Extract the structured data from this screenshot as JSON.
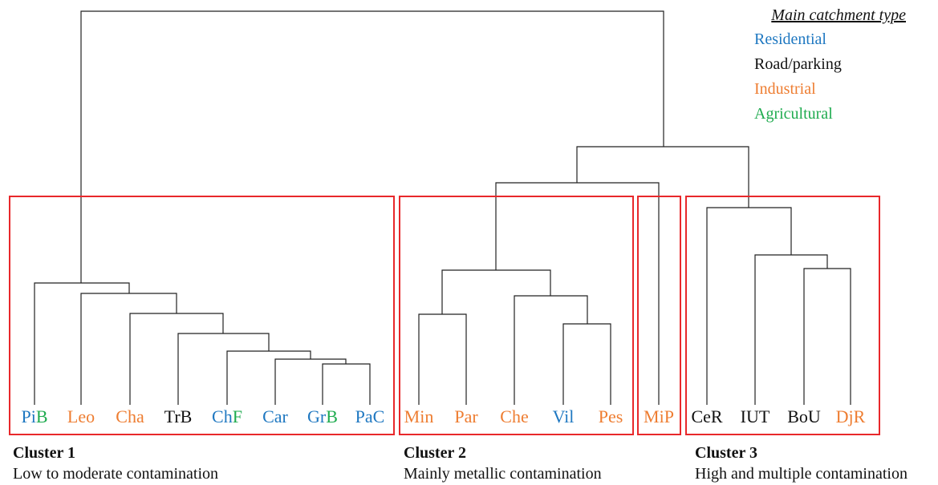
{
  "legend": {
    "title": "Main catchment type",
    "items": [
      {
        "label": "Residential",
        "color": "#1f78c1"
      },
      {
        "label": "Road/parking",
        "color": "#111111"
      },
      {
        "label": "Industrial",
        "color": "#ee7d31"
      },
      {
        "label": "Agricultural",
        "color": "#1fab4f"
      }
    ]
  },
  "leaves": [
    {
      "label": "PiB",
      "parts": [
        {
          "t": "Pi",
          "color": "#1f78c1"
        },
        {
          "t": "B",
          "color": "#1fab4f"
        }
      ]
    },
    {
      "label": "Leo",
      "parts": [
        {
          "t": "Leo",
          "color": "#ee7d31"
        }
      ]
    },
    {
      "label": "Cha",
      "parts": [
        {
          "t": "Cha",
          "color": "#ee7d31"
        }
      ]
    },
    {
      "label": "TrB",
      "parts": [
        {
          "t": "TrB",
          "color": "#111111"
        }
      ]
    },
    {
      "label": "ChF",
      "parts": [
        {
          "t": "Ch",
          "color": "#1f78c1"
        },
        {
          "t": "F",
          "color": "#1fab4f"
        }
      ]
    },
    {
      "label": "Car",
      "parts": [
        {
          "t": "Car",
          "color": "#1f78c1"
        }
      ]
    },
    {
      "label": "GrB",
      "parts": [
        {
          "t": "Gr",
          "color": "#1f78c1"
        },
        {
          "t": "B",
          "color": "#1fab4f"
        }
      ]
    },
    {
      "label": "PaC",
      "parts": [
        {
          "t": "PaC",
          "color": "#1f78c1"
        }
      ]
    },
    {
      "label": "Min",
      "parts": [
        {
          "t": "Min",
          "color": "#ee7d31"
        }
      ]
    },
    {
      "label": "Par",
      "parts": [
        {
          "t": "Par",
          "color": "#ee7d31"
        }
      ]
    },
    {
      "label": "Che",
      "parts": [
        {
          "t": "Che",
          "color": "#ee7d31"
        }
      ]
    },
    {
      "label": "Vil",
      "parts": [
        {
          "t": "Vil",
          "color": "#1f78c1"
        }
      ]
    },
    {
      "label": "Pes",
      "parts": [
        {
          "t": "Pes",
          "color": "#ee7d31"
        }
      ]
    },
    {
      "label": "MiP",
      "parts": [
        {
          "t": "MiP",
          "color": "#ee7d31"
        }
      ]
    },
    {
      "label": "CeR",
      "parts": [
        {
          "t": "CeR",
          "color": "#111111"
        }
      ]
    },
    {
      "label": "IUT",
      "parts": [
        {
          "t": "IUT",
          "color": "#111111"
        }
      ]
    },
    {
      "label": "BoU",
      "parts": [
        {
          "t": "BoU",
          "color": "#111111"
        }
      ]
    },
    {
      "label": "DjR",
      "parts": [
        {
          "t": "DjR",
          "color": "#ee7d31"
        }
      ]
    }
  ],
  "clusters": [
    {
      "title": "Cluster 1",
      "description": "Low to moderate contamination"
    },
    {
      "title": "Cluster 2",
      "description": "Mainly metallic contamination"
    },
    {
      "title": "Cluster 3",
      "description": "High and multiple contamination"
    }
  ],
  "box_color": "#e8282b"
}
